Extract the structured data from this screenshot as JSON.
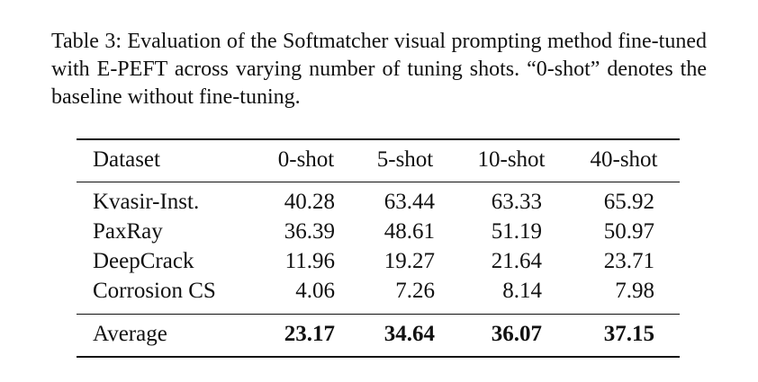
{
  "caption": "Table 3: Evaluation of the Softmatcher visual prompting method fine-tuned with E-PEFT across varying number of tuning shots. “0-shot” denotes the baseline without fine-tuning.",
  "table": {
    "header": [
      "Dataset",
      "0-shot",
      "5-shot",
      "10-shot",
      "40-shot"
    ],
    "rows": [
      [
        "Kvasir-Inst.",
        "40.28",
        "63.44",
        "63.33",
        "65.92"
      ],
      [
        "PaxRay",
        "36.39",
        "48.61",
        "51.19",
        "50.97"
      ],
      [
        "DeepCrack",
        "11.96",
        "19.27",
        "21.64",
        "23.71"
      ],
      [
        "Corrosion CS",
        "4.06",
        "7.26",
        "8.14",
        "7.98"
      ]
    ],
    "footer": [
      "Average",
      "23.17",
      "34.64",
      "36.07",
      "37.15"
    ]
  }
}
